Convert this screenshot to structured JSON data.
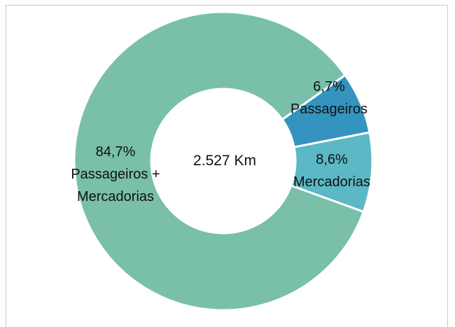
{
  "chart_data": {
    "type": "donut",
    "center_label": "2.527 Km",
    "categories": [
      "Passageiros",
      "Mercadorias",
      "Passageiros + Mercadorias"
    ],
    "values": [
      6.7,
      8.6,
      84.7
    ],
    "value_labels": [
      "6,7%",
      "8,6%",
      "84,7%"
    ],
    "colors": [
      "#3593bf",
      "#5bb8c4",
      "#79bfaa"
    ]
  }
}
